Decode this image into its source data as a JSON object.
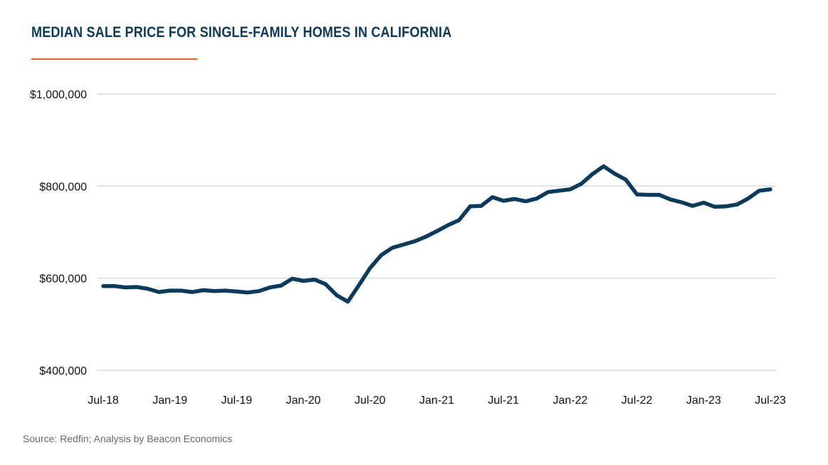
{
  "title": "MEDIAN SALE PRICE FOR SINGLE-FAMILY HOMES IN CALIFORNIA",
  "source": "Source: Redfin; Analysis by Beacon Economics",
  "colors": {
    "line": "#0b3a5b",
    "accent_rule": "#e8622a",
    "grid": "#c9d3d6",
    "title": "#0b3a5b"
  },
  "chart_data": {
    "type": "line",
    "title": "MEDIAN SALE PRICE FOR SINGLE-FAMILY HOMES IN CALIFORNIA",
    "xlabel": "",
    "ylabel": "",
    "ylim": [
      400000,
      1000000
    ],
    "yticks": [
      400000,
      600000,
      800000,
      1000000
    ],
    "ytick_labels": [
      "$400,000",
      "$600,000",
      "$800,000",
      "$1,000,000"
    ],
    "xtick_labels": [
      "Jul-18",
      "Jan-19",
      "Jul-19",
      "Jan-20",
      "Jul-20",
      "Jan-21",
      "Jul-21",
      "Jan-22",
      "Jul-22",
      "Jan-23",
      "Jul-23"
    ],
    "grid": true,
    "legend": "none",
    "series": [
      {
        "x": [
          "2018-07",
          "2018-08",
          "2018-09",
          "2018-10",
          "2018-11",
          "2018-12",
          "2019-01",
          "2019-02",
          "2019-03",
          "2019-04",
          "2019-05",
          "2019-06",
          "2019-07",
          "2019-08",
          "2019-09",
          "2019-10",
          "2019-11",
          "2019-12",
          "2020-01",
          "2020-02",
          "2020-03",
          "2020-04",
          "2020-05",
          "2020-06",
          "2020-07",
          "2020-08",
          "2020-09",
          "2020-10",
          "2020-11",
          "2020-12",
          "2021-01",
          "2021-02",
          "2021-03",
          "2021-04",
          "2021-05",
          "2021-06",
          "2021-07",
          "2021-08",
          "2021-09",
          "2021-10",
          "2021-11",
          "2021-12",
          "2022-01",
          "2022-02",
          "2022-03",
          "2022-04",
          "2022-05",
          "2022-06",
          "2022-07",
          "2022-08",
          "2022-09",
          "2022-10",
          "2022-11",
          "2022-12",
          "2023-01",
          "2023-02",
          "2023-03",
          "2023-04",
          "2023-05",
          "2023-06",
          "2023-07"
        ],
        "values": [
          583000,
          583000,
          580000,
          581000,
          577000,
          570000,
          573000,
          573000,
          570000,
          574000,
          572000,
          573000,
          571000,
          569000,
          572000,
          580000,
          584000,
          599000,
          594000,
          597000,
          587000,
          563000,
          549000,
          585000,
          622000,
          650000,
          666000,
          673000,
          680000,
          690000,
          702000,
          715000,
          726000,
          756000,
          757000,
          776000,
          768000,
          772000,
          767000,
          773000,
          787000,
          790000,
          793000,
          805000,
          826000,
          843000,
          827000,
          814000,
          782000,
          781000,
          781000,
          771000,
          765000,
          757000,
          764000,
          755000,
          756000,
          760000,
          773000,
          790000,
          793000
        ]
      }
    ]
  }
}
